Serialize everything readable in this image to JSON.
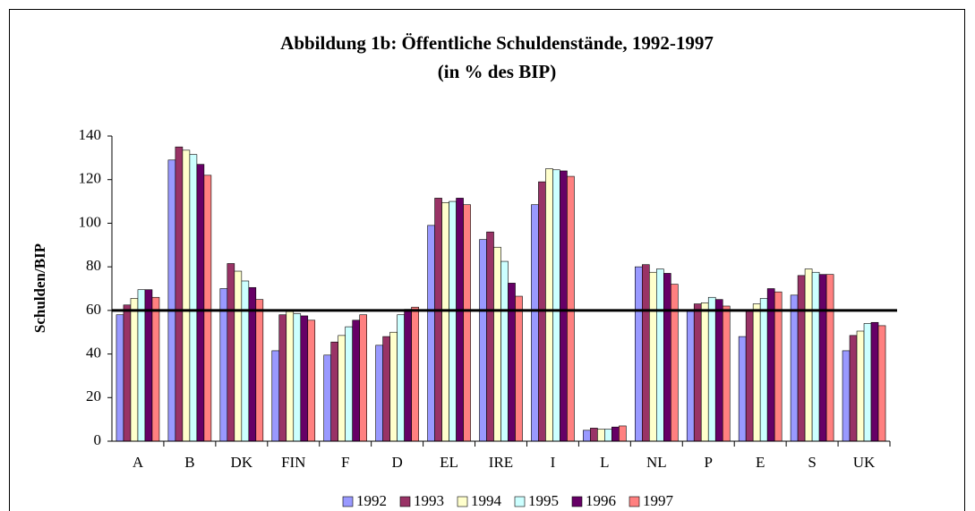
{
  "chart_data": {
    "type": "bar",
    "title": "Abbildung 1b: Öffentliche Schuldenstände, 1992-1997",
    "subtitle": "(in % des BIP)",
    "y_label": "Schulden/BIP",
    "categories": [
      "A",
      "B",
      "DK",
      "FIN",
      "F",
      "D",
      "EL",
      "IRE",
      "I",
      "L",
      "NL",
      "P",
      "E",
      "S",
      "UK"
    ],
    "series": [
      {
        "name": "1992",
        "color": "#9999ff",
        "values": [
          58,
          129,
          70,
          41.5,
          39.5,
          44,
          99,
          92.5,
          108.5,
          5,
          80,
          60,
          48,
          67,
          41.5
        ]
      },
      {
        "name": "1993",
        "color": "#993366",
        "values": [
          62.5,
          135,
          81.5,
          58,
          45.5,
          48,
          111.5,
          96,
          119,
          6,
          81,
          63,
          60,
          76,
          48.5
        ]
      },
      {
        "name": "1994",
        "color": "#ffffcc",
        "values": [
          65.5,
          133.5,
          78,
          59.5,
          48.5,
          50,
          109.5,
          89,
          125,
          5.5,
          77.5,
          63.5,
          63,
          79,
          50.5
        ]
      },
      {
        "name": "1995",
        "color": "#ccffff",
        "values": [
          69.5,
          131.5,
          73.5,
          58.5,
          52.5,
          58,
          110,
          82.5,
          124.5,
          5.5,
          79,
          66,
          65.5,
          77.5,
          54
        ]
      },
      {
        "name": "1996",
        "color": "#660066",
        "values": [
          69.5,
          127,
          70.5,
          57.5,
          55.5,
          60.5,
          111.5,
          72.5,
          124,
          6.5,
          77,
          65,
          70,
          76.5,
          54.5
        ]
      },
      {
        "name": "1997",
        "color": "#ff8080",
        "values": [
          66,
          122,
          65,
          55.5,
          58,
          61.5,
          108.5,
          66.5,
          121.5,
          7,
          72,
          62,
          68.5,
          76.5,
          53
        ]
      }
    ],
    "hline": 60,
    "ylim": [
      0,
      140
    ],
    "yticks": [
      0,
      20,
      40,
      60,
      80,
      100,
      120,
      140
    ],
    "legend": "bottom"
  }
}
